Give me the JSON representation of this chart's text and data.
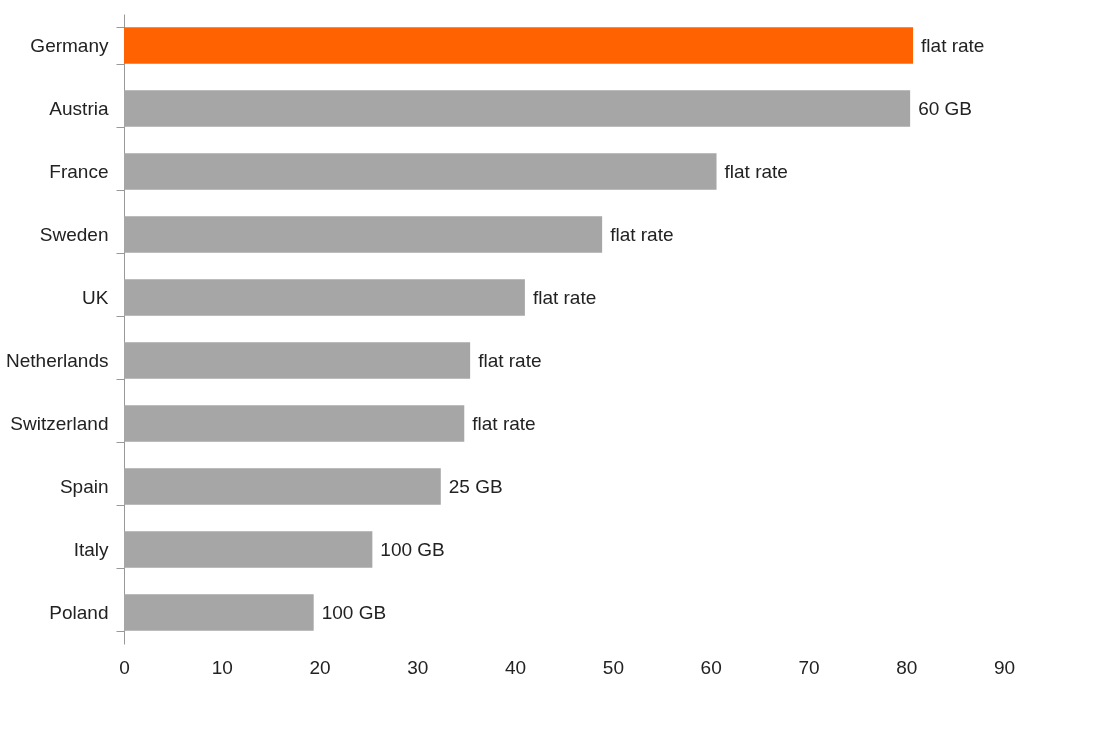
{
  "chart_data": {
    "type": "bar",
    "orientation": "horizontal",
    "categories": [
      "Germany",
      "Austria",
      "France",
      "Sweden",
      "UK",
      "Netherlands",
      "Switzerland",
      "Spain",
      "Italy",
      "Poland"
    ],
    "values": [
      80.7,
      80.4,
      60.6,
      48.9,
      41.0,
      35.4,
      34.8,
      32.4,
      25.4,
      19.4
    ],
    "colors": [
      "#ff6200",
      "#a6a6a6",
      "#a6a6a6",
      "#a6a6a6",
      "#a6a6a6",
      "#a6a6a6",
      "#a6a6a6",
      "#a6a6a6",
      "#a6a6a6",
      "#a6a6a6"
    ],
    "annotations": [
      {
        "text": "flat rate",
        "x": 80.7,
        "y": "Germany"
      },
      {
        "text": "60 GB",
        "x": 80.4,
        "y": "Austria"
      },
      {
        "text": "flat rate",
        "x": 60.6,
        "y": "France"
      },
      {
        "text": "flat rate",
        "x": 48.9,
        "y": "Sweden"
      },
      {
        "text": "flat rate",
        "x": 41.0,
        "y": "UK"
      },
      {
        "text": "flat rate",
        "x": 35.4,
        "y": "Netherlands"
      },
      {
        "text": "flat rate",
        "x": 34.8,
        "y": "Switzerland"
      },
      {
        "text": "25 GB",
        "x": 32.4,
        "y": "Spain"
      },
      {
        "text": "100 GB",
        "x": 25.4,
        "y": "Italy"
      },
      {
        "text": "100 GB",
        "x": 19.4,
        "y": "Poland"
      }
    ],
    "xlim": [
      0,
      90
    ],
    "xticks": [
      0,
      10,
      20,
      30,
      40,
      50,
      60,
      70,
      80,
      90
    ],
    "grid": false
  }
}
